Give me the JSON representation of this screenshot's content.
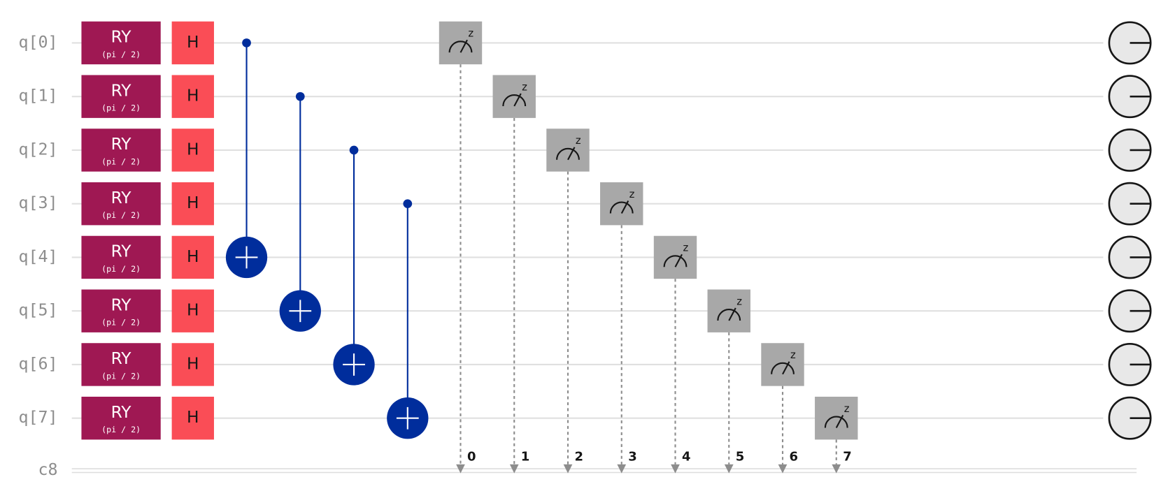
{
  "register": "c8",
  "rows": [
    {
      "qubit": "q[0]",
      "ry": "RY",
      "param": "(pi / 2)",
      "h": "H"
    },
    {
      "qubit": "q[1]",
      "ry": "RY",
      "param": "(pi / 2)",
      "h": "H"
    },
    {
      "qubit": "q[2]",
      "ry": "RY",
      "param": "(pi / 2)",
      "h": "H"
    },
    {
      "qubit": "q[3]",
      "ry": "RY",
      "param": "(pi / 2)",
      "h": "H"
    },
    {
      "qubit": "q[4]",
      "ry": "RY",
      "param": "(pi / 2)",
      "h": "H"
    },
    {
      "qubit": "q[5]",
      "ry": "RY",
      "param": "(pi / 2)",
      "h": "H"
    },
    {
      "qubit": "q[6]",
      "ry": "RY",
      "param": "(pi / 2)",
      "h": "H"
    },
    {
      "qubit": "q[7]",
      "ry": "RY",
      "param": "(pi / 2)",
      "h": "H"
    }
  ],
  "measurements": [
    {
      "basis": "z",
      "bit": 0
    },
    {
      "basis": "z",
      "bit": 1
    },
    {
      "basis": "z",
      "bit": 2
    },
    {
      "basis": "z",
      "bit": 3
    },
    {
      "basis": "z",
      "bit": 4
    },
    {
      "basis": "z",
      "bit": 5
    },
    {
      "basis": "z",
      "bit": 6
    },
    {
      "basis": "z",
      "bit": 7
    }
  ]
}
